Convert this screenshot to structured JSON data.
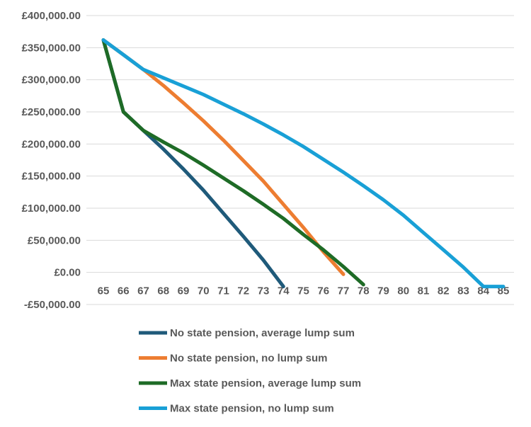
{
  "chart_data": {
    "type": "line",
    "title": "",
    "xlabel": "",
    "ylabel": "",
    "x": [
      65,
      66,
      67,
      68,
      69,
      70,
      71,
      72,
      73,
      74,
      75,
      76,
      77,
      78,
      79,
      80,
      81,
      82,
      83,
      84,
      85
    ],
    "x_tick_labels": [
      "65",
      "66",
      "67",
      "68",
      "69",
      "70",
      "71",
      "72",
      "73",
      "74",
      "75",
      "76",
      "77",
      "78",
      "79",
      "80",
      "81",
      "82",
      "83",
      "84",
      "85"
    ],
    "ylim": [
      -50000,
      400000
    ],
    "y_ticks": [
      400000,
      350000,
      300000,
      250000,
      200000,
      150000,
      100000,
      50000,
      0,
      -50000
    ],
    "y_tick_labels": [
      "£400,000.00",
      "£350,000.00",
      "£300,000.00",
      "£250,000.00",
      "£200,000.00",
      "£150,000.00",
      "£100,000.00",
      "£50,000.00",
      "£0.00",
      "-£50,000.00"
    ],
    "grid": "horizontal",
    "legend_position": "bottom",
    "series": [
      {
        "name": "No state pension, average lump sum",
        "color": "#1f5a7a",
        "x": [
          65,
          66,
          67,
          68,
          69,
          70,
          71,
          72,
          73,
          74
        ],
        "y": [
          362000,
          250000,
          221000,
          192000,
          161000,
          128000,
          92000,
          56000,
          19000,
          -22000
        ]
      },
      {
        "name": "No state pension, no lump sum",
        "color": "#ed7d31",
        "x": [
          65,
          66,
          67,
          68,
          69,
          70,
          71,
          72,
          73,
          74,
          75,
          76,
          77
        ],
        "y": [
          362000,
          339000,
          316000,
          291000,
          264000,
          236000,
          206000,
          174000,
          142000,
          106000,
          70000,
          32000,
          -3000
        ]
      },
      {
        "name": "Max state pension, average lump sum",
        "color": "#1e6b26",
        "x": [
          65,
          66,
          67,
          68,
          69,
          70,
          71,
          72,
          73,
          74,
          75,
          76,
          77,
          78
        ],
        "y": [
          362000,
          250000,
          221000,
          203000,
          186000,
          167000,
          147000,
          127000,
          106000,
          84000,
          59000,
          35000,
          9000,
          -19000
        ]
      },
      {
        "name": "Max state pension, no lump sum",
        "color": "#19a0d6",
        "x": [
          65,
          66,
          67,
          68,
          69,
          70,
          71,
          72,
          73,
          74,
          75,
          76,
          77,
          78,
          79,
          80,
          81,
          82,
          83,
          84,
          85
        ],
        "y": [
          362000,
          339000,
          316000,
          303000,
          290000,
          277000,
          262000,
          247000,
          231000,
          214000,
          196000,
          176000,
          156000,
          135000,
          113000,
          89000,
          62000,
          35000,
          8000,
          -22000,
          -22000
        ]
      }
    ]
  }
}
